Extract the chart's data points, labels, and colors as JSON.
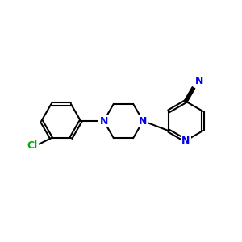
{
  "background_color": "#ffffff",
  "bond_color": "#000000",
  "N_color": "#0000ee",
  "Cl_color": "#00aa00",
  "N_label": "N",
  "Cl_label": "Cl",
  "CN_N_label": "N",
  "figure_size": [
    3.0,
    3.0
  ],
  "dpi": 100,
  "lw": 1.5
}
